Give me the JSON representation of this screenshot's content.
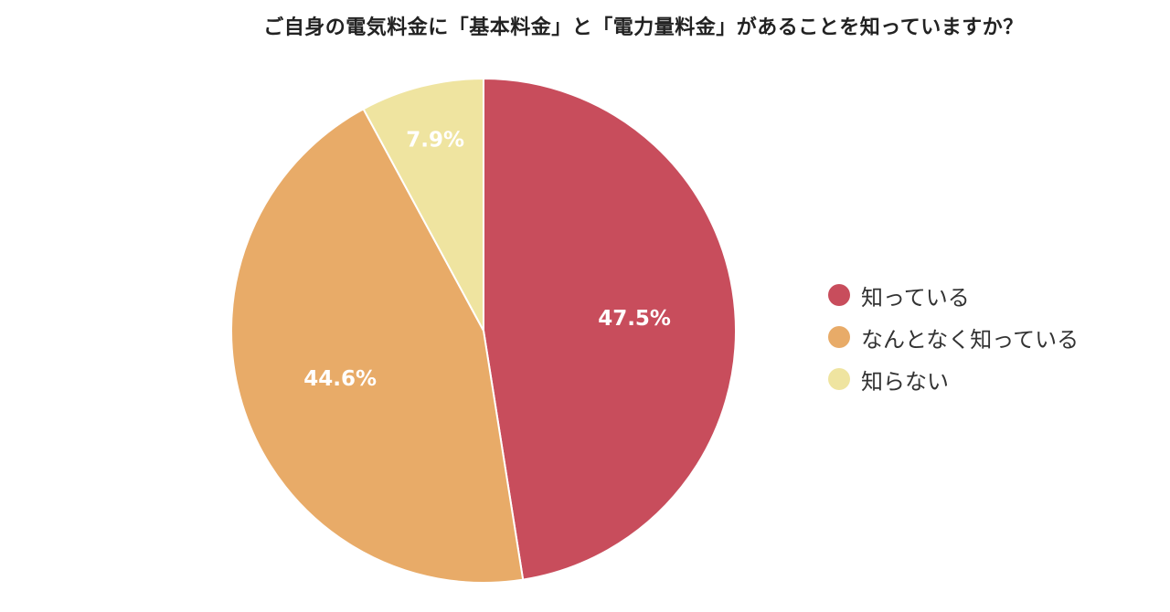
{
  "chart_data": {
    "type": "pie",
    "title": "ご自身の電気料金に「基本料金」と「電力量料金」があることを知っていますか？",
    "slices": [
      {
        "name": "知っている",
        "value": 47.5,
        "label": "47.5%",
        "color": "#c84d5c"
      },
      {
        "name": "なんとなく知っている",
        "value": 44.6,
        "label": "44.6%",
        "color": "#e8ab68"
      },
      {
        "name": "知らない",
        "value": 7.9,
        "label": "7.9%",
        "color": "#efe4a0"
      }
    ],
    "legend_position": "right",
    "start_angle": "top",
    "direction": "clockwise"
  }
}
